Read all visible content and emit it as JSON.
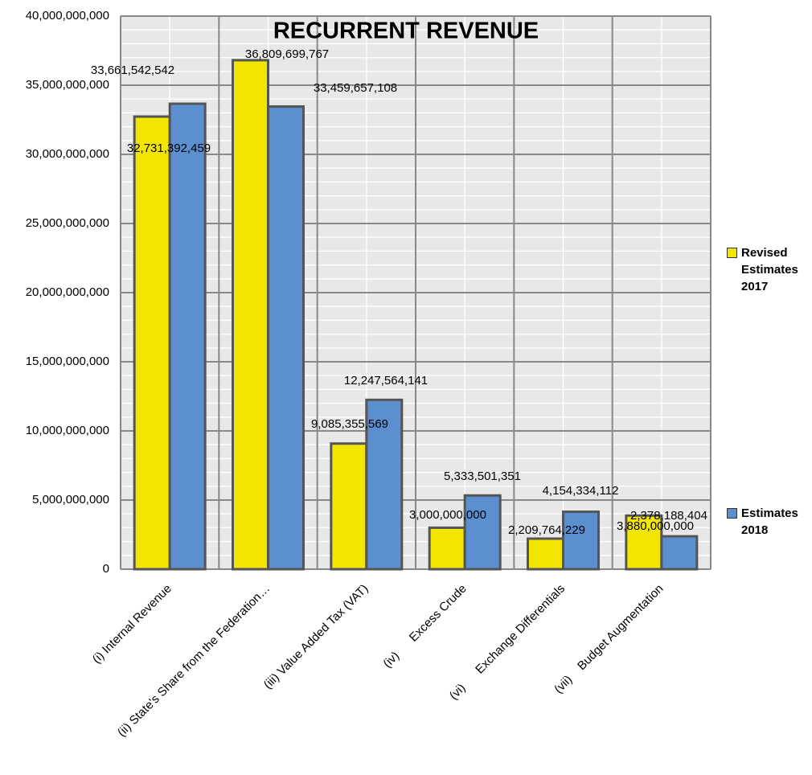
{
  "chart_data": {
    "type": "bar",
    "title": "RECURRENT REVENUE",
    "categories": [
      "(i) Internal Revenue",
      "(ii) State's Share from the Federation…",
      "(iii) Value Added Tax (VAT)",
      "(iv)      Excess Crude",
      "(vi)      Exchange Differentials",
      "(vii)    Budget Augmentation"
    ],
    "series": [
      {
        "name": "Revised Estimates 2017",
        "color": "#f2e600",
        "values": [
          32731392459,
          36809699767,
          9085355569,
          3000000000,
          2209764229,
          3880000000
        ],
        "value_labels": [
          "32,731,392,459",
          "36,809,699,767",
          "9,085,355,569",
          "3,000,000,000",
          "2,209,764,229",
          "3,880,000,000"
        ]
      },
      {
        "name": "Estimates 2018",
        "color": "#5b8fd0",
        "values": [
          33661542542,
          33459657108,
          12247564141,
          5333501351,
          4154334112,
          2378188404
        ],
        "value_labels": [
          "33,661,542,542",
          "33,459,657,108",
          "12,247,564,141",
          "5,333,501,351",
          "4,154,334,112",
          "2,378,188,404"
        ]
      }
    ],
    "ylim": [
      0,
      40000000000
    ],
    "yticks": [
      0,
      {
        "value": 5000000000,
        "label": "5,000,000,000"
      },
      {
        "value": 10000000000,
        "label": "10,000,000,000"
      },
      {
        "value": 15000000000,
        "label": "15,000,000,000"
      },
      {
        "value": 20000000000,
        "label": "20,000,000,000"
      },
      {
        "value": 25000000000,
        "label": "25,000,000,000"
      },
      {
        "value": 30000000000,
        "label": "30,000,000,000"
      },
      {
        "value": 35000000000,
        "label": "35,000,000,000"
      },
      {
        "value": 40000000000,
        "label": "40,000,000,000"
      }
    ],
    "grid": true,
    "legend": "right"
  }
}
